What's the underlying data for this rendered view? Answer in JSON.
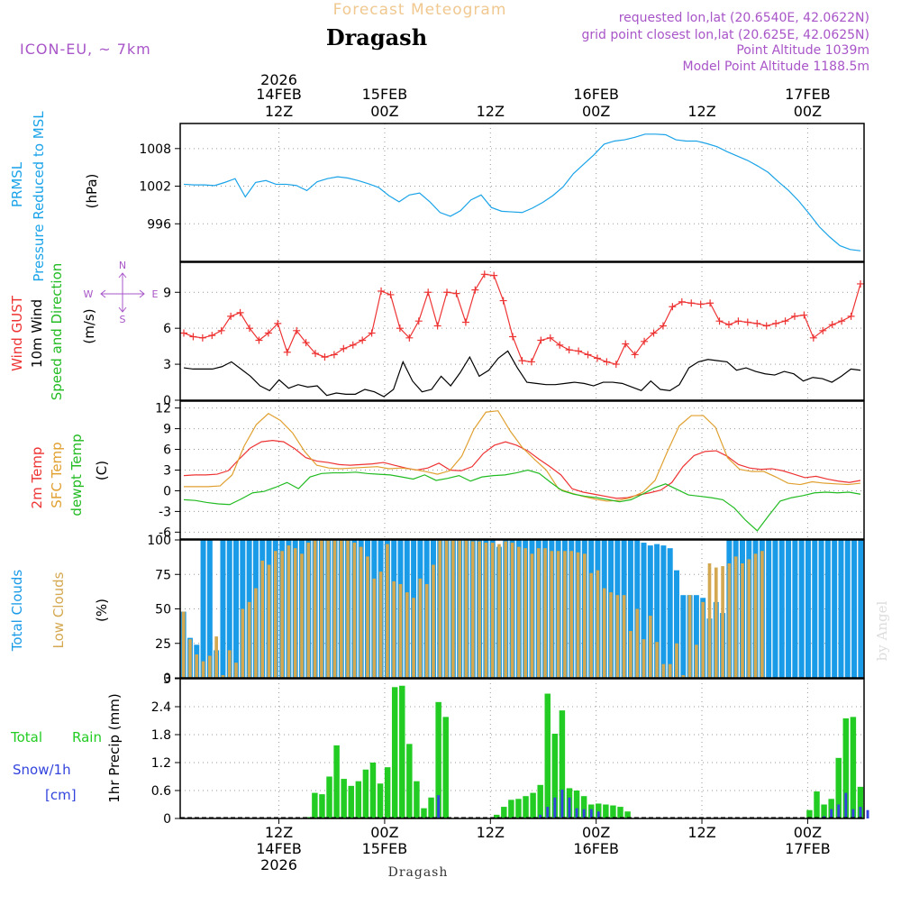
{
  "header": {
    "supertitle": "Forecast Meteogram",
    "title": "Dragash",
    "model": "ICON-EU, ~ 7km",
    "requested": "requested lon,lat (20.6540E, 42.0622N)",
    "gridpoint": "grid point closest lon,lat (20.625E, 42.0625N)",
    "point_alt": "Point Altitude 1039m",
    "model_alt": "Model Point Altitude 1188.5m",
    "footer": "Dragash",
    "watermark": "by Angel"
  },
  "time_axis": {
    "unit": "hours since 13FEB 18Z",
    "range": [
      0,
      97
    ],
    "ticks": [
      {
        "h": 14,
        "hour": "12Z",
        "date": "14FEB",
        "year": "2026"
      },
      {
        "h": 29,
        "hour": "00Z",
        "date": "15FEB",
        "year": ""
      },
      {
        "h": 44,
        "hour": "12Z",
        "date": "",
        "year": ""
      },
      {
        "h": 59,
        "hour": "00Z",
        "date": "16FEB",
        "year": ""
      },
      {
        "h": 74,
        "hour": "12Z",
        "date": "",
        "year": ""
      },
      {
        "h": 89,
        "hour": "00Z",
        "date": "17FEB",
        "year": ""
      }
    ]
  },
  "colors": {
    "pressure": "#1aa3e8",
    "gust": "#ee3333",
    "wind": "#000000",
    "dir": "#22bb22",
    "t2m": "#ee3333",
    "tsfc": "#e0a030",
    "dewpt": "#22bb22",
    "total_clouds": "#1a9be8",
    "low_clouds": "#d4a850",
    "rain": "#22cc22",
    "snow": "#3344dd",
    "purple": "#a855c8",
    "grid": "#999999"
  },
  "chart_data": [
    {
      "type": "line",
      "id": "pressure",
      "ylabels": [
        "PRMSL",
        "Pressure Reduced to MSL",
        "(hPa)"
      ],
      "ylim": [
        990,
        1012
      ],
      "yticks": [
        996,
        1002,
        1008
      ],
      "series": [
        {
          "name": "Pressure MSL",
          "values": [
            1002.3,
            1002.2,
            1002.2,
            1002.1,
            1002.6,
            1003.2,
            1000.3,
            1002.6,
            1002.9,
            1002.3,
            1002.3,
            1002.1,
            1001.3,
            1002.7,
            1003.2,
            1003.5,
            1003.3,
            1002.9,
            1002.4,
            1001.8,
            1000.5,
            999.5,
            1000.6,
            1000.9,
            999.5,
            997.8,
            997.2,
            998.1,
            999.8,
            1000.6,
            998.6,
            998.0,
            997.9,
            997.8,
            998.5,
            999.4,
            1000.5,
            1001.9,
            1004.0,
            1005.5,
            1007.0,
            1008.7,
            1009.2,
            1009.4,
            1009.8,
            1010.3,
            1010.3,
            1010.2,
            1009.4,
            1009.2,
            1009.2,
            1008.8,
            1008.3,
            1007.5,
            1006.8,
            1006.1,
            1005.2,
            1004.2,
            1002.7,
            1001.3,
            999.6,
            997.6,
            995.5,
            993.9,
            992.5,
            991.9,
            991.7
          ]
        }
      ]
    },
    {
      "type": "line",
      "id": "wind",
      "ylabels": [
        "Wind GUST",
        "10m Wind",
        "Speed and Direction",
        "(m/s)"
      ],
      "compass": {
        "n": "N",
        "s": "S",
        "w": "W",
        "e": "E"
      },
      "ylim": [
        0,
        11.5
      ],
      "yticks": [
        0,
        3,
        6,
        9
      ],
      "series": [
        {
          "name": "Wind GUST",
          "values": [
            5.6,
            5.3,
            5.2,
            5.4,
            5.8,
            7.0,
            7.3,
            6.0,
            5.0,
            5.6,
            6.4,
            4.0,
            5.8,
            4.8,
            3.9,
            3.6,
            3.8,
            4.3,
            4.6,
            5.0,
            5.6,
            9.1,
            8.8,
            6.0,
            5.2,
            6.6,
            9.0,
            6.2,
            9.0,
            8.9,
            6.5,
            9.2,
            10.5,
            10.4,
            8.3,
            5.3,
            3.3,
            3.2,
            5.0,
            5.2,
            4.6,
            4.2,
            4.1,
            3.8,
            3.5,
            3.2,
            3.0,
            4.7,
            3.8,
            4.9,
            5.6,
            6.2,
            7.8,
            8.2,
            8.1,
            8.0,
            8.1,
            6.6,
            6.3,
            6.6,
            6.5,
            6.4,
            6.2,
            6.4,
            6.6,
            7.0,
            7.1,
            5.2,
            5.8,
            6.3,
            6.6,
            7.0,
            9.7
          ]
        },
        {
          "name": "10m Wind",
          "values": [
            2.7,
            2.6,
            2.6,
            2.6,
            2.8,
            3.2,
            2.6,
            2.0,
            1.2,
            0.8,
            1.7,
            1.0,
            1.3,
            1.1,
            1.2,
            0.4,
            0.6,
            0.5,
            0.5,
            0.9,
            0.7,
            0.3,
            0.9,
            3.2,
            1.6,
            0.7,
            0.9,
            2.0,
            1.2,
            2.3,
            3.6,
            2.0,
            2.5,
            3.5,
            4.1,
            2.7,
            1.5,
            1.4,
            1.3,
            1.3,
            1.4,
            1.5,
            1.4,
            1.2,
            1.5,
            1.5,
            1.4,
            1.1,
            0.8,
            1.6,
            0.9,
            0.8,
            1.3,
            2.7,
            3.2,
            3.4,
            3.3,
            3.2,
            2.5,
            2.7,
            2.4,
            2.2,
            2.1,
            2.4,
            2.2,
            1.6,
            1.9,
            1.8,
            1.5,
            2.0,
            2.6,
            2.5
          ]
        }
      ]
    },
    {
      "type": "line",
      "id": "temperature",
      "ylabels": [
        "2m Temp",
        "SFC Temp",
        "dewpt Temp",
        "(C)"
      ],
      "ylim": [
        -7,
        13
      ],
      "yticks": [
        -6,
        -3,
        0,
        3,
        6,
        9,
        12
      ],
      "series": [
        {
          "name": "2m Temp",
          "values": [
            2.2,
            2.3,
            2.3,
            2.4,
            2.9,
            4.6,
            6.2,
            7.1,
            7.3,
            7.1,
            6.1,
            4.8,
            4.3,
            4.1,
            3.8,
            3.7,
            3.8,
            3.9,
            4.1,
            3.7,
            3.3,
            3.0,
            3.3,
            4.0,
            3.0,
            2.9,
            3.5,
            5.4,
            6.6,
            7.1,
            6.6,
            5.8,
            4.6,
            3.5,
            2.3,
            0.3,
            -0.2,
            -0.5,
            -0.8,
            -1.1,
            -1.0,
            -0.6,
            -0.3,
            0.1,
            1.2,
            3.5,
            5.1,
            5.7,
            5.8,
            5.0,
            3.8,
            3.3,
            3.1,
            3.2,
            2.9,
            2.4,
            1.9,
            2.1,
            1.7,
            1.4,
            1.2,
            1.5
          ]
        },
        {
          "name": "SFC Temp",
          "values": [
            0.6,
            0.6,
            0.6,
            0.7,
            2.3,
            6.5,
            9.6,
            11.2,
            10.2,
            8.4,
            5.7,
            3.7,
            3.3,
            3.2,
            3.3,
            3.4,
            3.5,
            3.2,
            3.3,
            3.1,
            2.8,
            2.4,
            2.9,
            5.0,
            8.9,
            11.4,
            11.6,
            8.7,
            6.3,
            4.6,
            3.0,
            0.3,
            -0.3,
            -0.8,
            -1.2,
            -1.5,
            -1.4,
            -1.0,
            -0.2,
            1.5,
            5.6,
            9.4,
            10.9,
            10.9,
            9.2,
            4.8,
            3.1,
            2.8,
            2.8,
            2.0,
            1.1,
            0.9,
            1.3,
            1.1,
            1.0,
            0.9,
            1.1
          ]
        },
        {
          "name": "dewpt Temp",
          "values": [
            -1.3,
            -1.4,
            -1.7,
            -1.9,
            -2.0,
            -1.2,
            -0.3,
            -0.1,
            0.5,
            1.2,
            0.3,
            2.0,
            2.5,
            2.6,
            2.6,
            2.7,
            2.5,
            2.4,
            2.3,
            2.0,
            1.7,
            2.3,
            1.5,
            1.8,
            2.2,
            1.4,
            2.0,
            2.2,
            2.3,
            2.6,
            3.0,
            2.5,
            1.2,
            0.0,
            -0.5,
            -0.8,
            -1.0,
            -1.3,
            -1.6,
            -1.3,
            -0.5,
            0.4,
            1.0,
            0.2,
            -0.6,
            -0.8,
            -1.0,
            -1.3,
            -2.5,
            -4.3,
            -5.8,
            -3.6,
            -1.5,
            -1.0,
            -0.7,
            -0.3,
            -0.2,
            -0.3,
            -0.2,
            -0.5
          ]
        }
      ]
    },
    {
      "type": "bar",
      "id": "clouds",
      "ylabels": [
        "Total Clouds",
        "Low Clouds",
        "(%)"
      ],
      "ylim": [
        0,
        100
      ],
      "yticks": [
        0,
        25,
        50,
        75,
        100
      ],
      "series": [
        {
          "name": "Total Clouds",
          "values": [
            48,
            29,
            24,
            100,
            100,
            20,
            100,
            100,
            100,
            100,
            100,
            100,
            100,
            100,
            100,
            100,
            100,
            100,
            100,
            100,
            100,
            100,
            100,
            100,
            100,
            100,
            100,
            100,
            100,
            100,
            100,
            100,
            100,
            100,
            100,
            100,
            100,
            100,
            100,
            100,
            100,
            100,
            100,
            100,
            100,
            100,
            100,
            100,
            95,
            100,
            100,
            100,
            100,
            100,
            100,
            100,
            100,
            100,
            100,
            100,
            100,
            100,
            100,
            100,
            100,
            100,
            100,
            100,
            100,
            100,
            98,
            96,
            97,
            96,
            94,
            78,
            60,
            60,
            60,
            58,
            43,
            55,
            47,
            100,
            100,
            100,
            100,
            100,
            100,
            100,
            100,
            100,
            100,
            100,
            100,
            100,
            100,
            100,
            100,
            100,
            100,
            100,
            100,
            100
          ]
        },
        {
          "name": "Low Clouds",
          "values": [
            48,
            28,
            17,
            12,
            16,
            30,
            2,
            20,
            11,
            50,
            55,
            65,
            85,
            82,
            92,
            92,
            96,
            94,
            90,
            98,
            100,
            100,
            100,
            100,
            100,
            100,
            98,
            95,
            88,
            72,
            77,
            97,
            70,
            68,
            62,
            58,
            72,
            68,
            82,
            100,
            100,
            100,
            100,
            100,
            99,
            99,
            98,
            98,
            97,
            99,
            98,
            95,
            94,
            90,
            94,
            94,
            92,
            92,
            92,
            92,
            91,
            90,
            76,
            78,
            65,
            62,
            60,
            60,
            34,
            50,
            28,
            45,
            26,
            10,
            10,
            25,
            2,
            60,
            24,
            55,
            83,
            80,
            81,
            83,
            88,
            83,
            86,
            90,
            92
          ]
        }
      ]
    },
    {
      "type": "bar",
      "id": "precip",
      "ylabels": [
        "Total",
        "Rain",
        "Snow/1h",
        "[cm]",
        "1hr Precip (mm)"
      ],
      "ylim": [
        0,
        3
      ],
      "yticks": [
        0,
        0.6,
        1.2,
        1.8,
        2.4,
        3
      ],
      "series": [
        {
          "name": "Total Rain",
          "values": [
            0,
            0,
            0,
            0,
            0,
            0,
            0,
            0,
            0,
            0,
            0,
            0,
            0,
            0,
            0,
            0,
            0,
            0.03,
            0.55,
            0.52,
            0.9,
            1.57,
            0.85,
            0.7,
            0.8,
            1.05,
            1.2,
            0.75,
            1.1,
            2.82,
            2.85,
            1.6,
            0.8,
            0.22,
            0.45,
            2.5,
            2.18,
            0,
            0,
            0,
            0,
            0,
            0,
            0.08,
            0.25,
            0.4,
            0.42,
            0.48,
            0.55,
            0.72,
            2.68,
            1.82,
            2.32,
            0.65,
            0.6,
            0.48,
            0.3,
            0.32,
            0.3,
            0.28,
            0.25,
            0.15,
            0,
            0,
            0,
            0,
            0,
            0,
            0,
            0,
            0,
            0,
            0,
            0,
            0,
            0,
            0,
            0,
            0,
            0,
            0,
            0,
            0,
            0,
            0,
            0,
            0.18,
            0.58,
            0.3,
            0.42,
            1.3,
            2.15,
            2.18,
            0.68
          ]
        },
        {
          "name": "Snow/1h",
          "values": [
            0,
            0,
            0,
            0,
            0,
            0,
            0,
            0,
            0,
            0,
            0,
            0,
            0,
            0,
            0,
            0,
            0,
            0,
            0,
            0,
            0,
            0,
            0,
            0,
            0,
            0,
            0,
            0,
            0,
            0,
            0,
            0,
            0,
            0,
            0,
            0.5,
            0,
            0,
            0,
            0,
            0,
            0,
            0,
            0,
            0,
            0,
            0,
            0,
            0,
            0.08,
            0.25,
            0.45,
            0.62,
            0.45,
            0.22,
            0.2,
            0.2,
            0.15,
            0,
            0,
            0,
            0,
            0,
            0,
            0,
            0,
            0,
            0,
            0,
            0,
            0,
            0,
            0,
            0,
            0,
            0,
            0,
            0,
            0,
            0,
            0,
            0,
            0,
            0,
            0,
            0,
            0,
            0,
            0.05,
            0.2,
            0.3,
            0.55,
            0.2,
            0.25,
            0.18
          ]
        }
      ]
    }
  ]
}
